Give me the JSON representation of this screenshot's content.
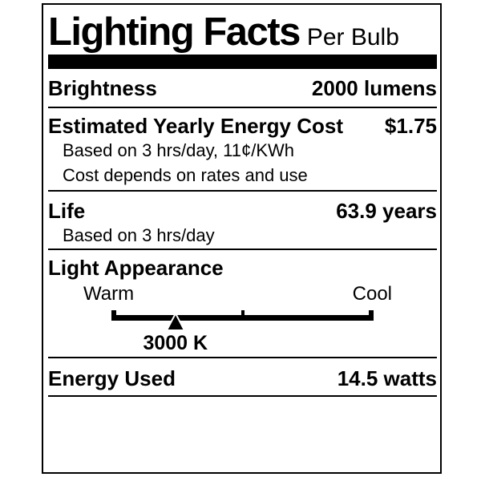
{
  "label": {
    "title": "Lighting Facts",
    "per_unit": "Per Bulb",
    "brightness": {
      "name": "Brightness",
      "value": "2000 lumens"
    },
    "energy_cost": {
      "name": "Estimated Yearly Energy Cost",
      "value": "$1.75",
      "note_basis": "Based on 3 hrs/day, 11¢/KWh",
      "note_disclaimer": "Cost depends on rates and use"
    },
    "life": {
      "name": "Life",
      "value": "63.9 years",
      "note_basis": "Based on 3 hrs/day"
    },
    "light_appearance": {
      "name": "Light Appearance",
      "warm_label": "Warm",
      "cool_label": "Cool",
      "temperature": "3000 K",
      "marker_position_pct": 24.4,
      "marker_icon": "triangle-up-icon"
    },
    "energy_used": {
      "name": "Energy Used",
      "value": "14.5 watts"
    },
    "colors": {
      "ink": "#000000",
      "background": "#ffffff"
    }
  }
}
